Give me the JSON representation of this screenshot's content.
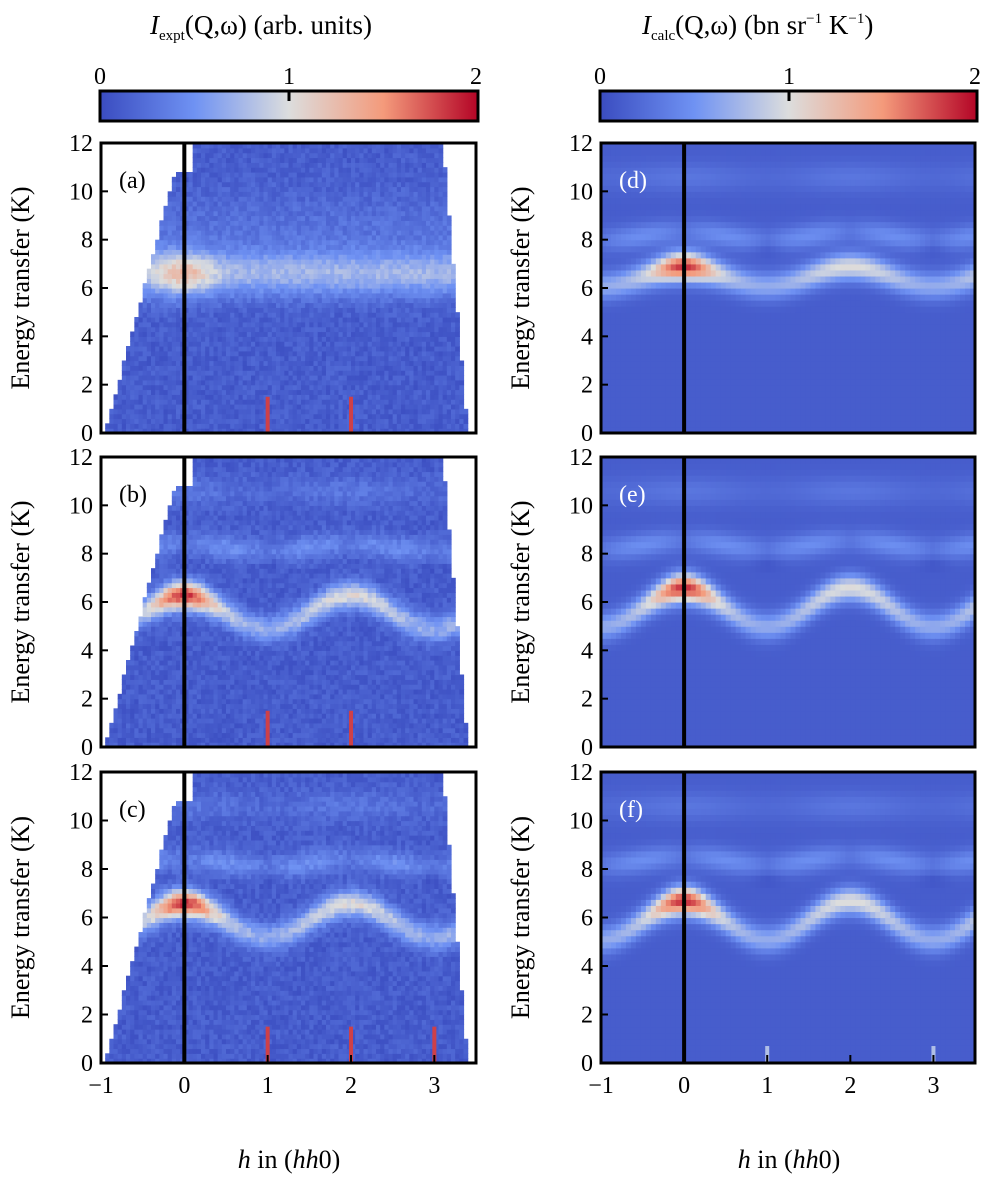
{
  "colorbars": [
    {
      "title_main": "I",
      "title_sub": "expt",
      "title_rest": "(Q,ω) (arb. units)",
      "ticks": [
        {
          "label": "0",
          "value": 0
        },
        {
          "label": "1",
          "value": 1
        },
        {
          "label": "2",
          "value": 2
        }
      ]
    },
    {
      "title_main": "I",
      "title_sub": "calc",
      "title_rest": "(Q,ω) (bn sr",
      "title_sup1": "−1",
      "title_mid": " K",
      "title_sup2": "−1",
      "title_end": ")",
      "ticks": [
        {
          "label": "0",
          "value": 0
        },
        {
          "label": "1",
          "value": 1
        },
        {
          "label": "2",
          "value": 2
        }
      ]
    }
  ],
  "y_ticks": [
    "0",
    "2",
    "4",
    "6",
    "8",
    "10",
    "12"
  ],
  "x_ticks": [
    "−1",
    "0",
    "1",
    "2",
    "3"
  ],
  "ylabel": "Energy transfer (K)",
  "xlabel": {
    "h": "h",
    "in": " in (",
    "hh": "hh",
    "zero": "0)"
  },
  "colors": {
    "low": "#3a4cc0",
    "mid": "#dcdddd",
    "high": "#b40426"
  },
  "chart_data": {
    "type": "heatmap",
    "x_axis": {
      "label": "h in (hh0)",
      "range": [
        -1,
        3.5
      ],
      "ticks": [
        -1,
        0,
        1,
        2,
        3
      ]
    },
    "y_axis": {
      "label": "Energy transfer (K)",
      "range": [
        0,
        12
      ],
      "ticks": [
        0,
        2,
        4,
        6,
        8,
        10,
        12
      ]
    },
    "colorscale": {
      "name": "coolwarm",
      "range": [
        0,
        2
      ]
    },
    "vertical_line_at_h": 0,
    "panels": [
      {
        "label": "(a)",
        "kind": "expt",
        "lower_band_E": 6.6,
        "flat_band": true,
        "upper_band_E": null,
        "max_intensity": 1.2,
        "bragg_peaks_h": [
          1,
          2
        ]
      },
      {
        "label": "(b)",
        "kind": "expt",
        "lower_band_E": 6.3,
        "dispersion_amp": 1.4,
        "upper_band_E": 8.3,
        "max_intensity": 1.9,
        "bragg_peaks_h": [
          1,
          2
        ]
      },
      {
        "label": "(c)",
        "kind": "expt",
        "lower_band_E": 6.6,
        "dispersion_amp": 1.4,
        "upper_band_E": 8.3,
        "max_intensity": 1.9,
        "bragg_peaks_h": [
          1,
          2,
          3
        ]
      },
      {
        "label": "(d)",
        "kind": "calc",
        "lower_band_E": 6.9,
        "dispersion_amp": 0.8,
        "upper_band_E": 8.2,
        "max_intensity": 1.9,
        "bragg_peaks_h": []
      },
      {
        "label": "(e)",
        "kind": "calc",
        "lower_band_E": 6.6,
        "dispersion_amp": 1.6,
        "upper_band_E": 8.4,
        "max_intensity": 1.9,
        "bragg_peaks_h": []
      },
      {
        "label": "(f)",
        "kind": "calc",
        "lower_band_E": 6.7,
        "dispersion_amp": 1.6,
        "upper_band_E": 8.4,
        "max_intensity": 1.9,
        "bragg_peaks_h": [
          1,
          3
        ]
      }
    ]
  }
}
